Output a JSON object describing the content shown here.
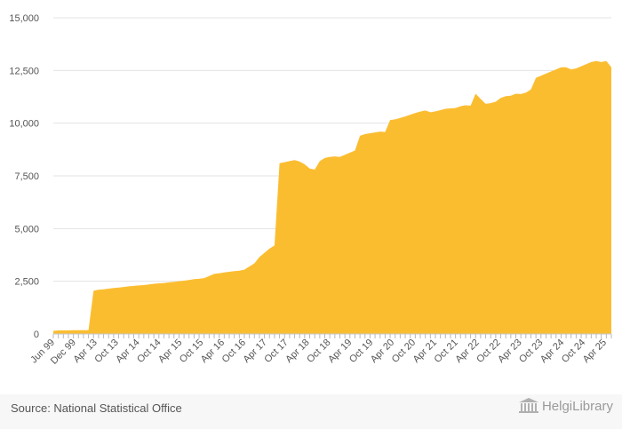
{
  "chart_data": {
    "type": "area",
    "color": "#fbbd30",
    "y_ticks": [
      0,
      2500,
      5000,
      7500,
      10000,
      12500,
      15000
    ],
    "y_tick_labels": [
      "0",
      "2,500",
      "5,000",
      "7,500",
      "10,000",
      "12,500",
      "15,000"
    ],
    "ylim": [
      0,
      15000
    ],
    "grid": true,
    "x_tick_labels": [
      "Jun 99",
      "Dec 99",
      "Apr 13",
      "Oct 13",
      "Apr 14",
      "Oct 14",
      "Apr 15",
      "Oct 15",
      "Apr 16",
      "Oct 16",
      "Apr 17",
      "Oct 17",
      "Apr 18",
      "Oct 18",
      "Apr 19",
      "Oct 19",
      "Apr 20",
      "Oct 20",
      "Apr 21",
      "Oct 21",
      "Apr 22",
      "Oct 22",
      "Apr 23",
      "Oct 23",
      "Apr 24",
      "Oct 24",
      "Apr 25"
    ],
    "values": [
      150,
      170,
      170,
      170,
      180,
      180,
      180,
      180,
      2050,
      2100,
      2120,
      2150,
      2180,
      2200,
      2230,
      2260,
      2280,
      2300,
      2320,
      2350,
      2380,
      2400,
      2420,
      2450,
      2470,
      2500,
      2530,
      2560,
      2600,
      2620,
      2650,
      2750,
      2850,
      2880,
      2920,
      2950,
      2980,
      3000,
      3050,
      3200,
      3350,
      3650,
      3850,
      4050,
      4200,
      8100,
      8150,
      8200,
      8250,
      8180,
      8050,
      7850,
      7800,
      8200,
      8350,
      8400,
      8420,
      8400,
      8500,
      8600,
      8700,
      9400,
      9480,
      9520,
      9560,
      9600,
      9580,
      10150,
      10180,
      10250,
      10320,
      10400,
      10480,
      10550,
      10600,
      10520,
      10560,
      10620,
      10680,
      10700,
      10720,
      10800,
      10850,
      10830,
      11400,
      11150,
      10920,
      10950,
      11020,
      11200,
      11280,
      11300,
      11400,
      11380,
      11450,
      11600,
      12150,
      12250,
      12350,
      12450,
      12550,
      12650,
      12650,
      12550,
      12600,
      12700,
      12800,
      12900,
      12950,
      12900,
      12950,
      12650
    ]
  },
  "footer": {
    "source": "Source: National Statistical Office",
    "brand": "HelgiLibrary"
  }
}
